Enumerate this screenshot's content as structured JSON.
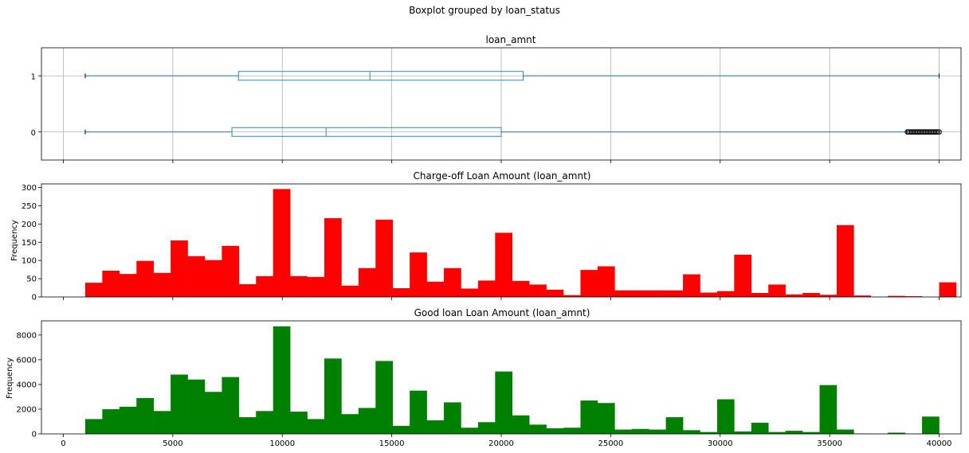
{
  "suptitle": "Boxplot grouped by loan_status",
  "chart_data": [
    {
      "type": "box",
      "title": "loan_amnt",
      "xlim": [
        -1000,
        41000
      ],
      "ylim": [
        0.5,
        2.5
      ],
      "grid": true,
      "color": "#1f77b4",
      "categories": [
        "0",
        "1"
      ],
      "boxes": [
        {
          "category": "0",
          "whisker_low": 1000,
          "q1": 7700,
          "median": 12000,
          "q3": 20000,
          "whisker_high": 38500,
          "outlier_range": [
            38550,
            40000
          ]
        },
        {
          "category": "1",
          "whisker_low": 1000,
          "q1": 8000,
          "median": 14000,
          "q3": 21000,
          "whisker_high": 40000,
          "outlier_range": []
        }
      ],
      "xticks": [
        0,
        5000,
        10000,
        15000,
        20000,
        25000,
        30000,
        35000,
        40000
      ]
    },
    {
      "type": "bar",
      "title": "Charge-off Loan Amount (loan_amnt)",
      "ylabel": "Frequency",
      "color": "#ff0000",
      "bin_start": 1000,
      "bin_width": 780,
      "xlim": [
        -1000,
        41000
      ],
      "ylim": [
        0,
        310
      ],
      "yticks": [
        0,
        50,
        100,
        150,
        200,
        250,
        300
      ],
      "values": [
        39,
        72,
        63,
        99,
        66,
        155,
        112,
        101,
        140,
        35,
        57,
        296,
        57,
        55,
        216,
        31,
        79,
        212,
        24,
        122,
        42,
        79,
        23,
        45,
        176,
        44,
        34,
        20,
        5,
        74,
        84,
        18,
        18,
        18,
        18,
        62,
        12,
        16,
        116,
        11,
        34,
        7,
        11,
        6,
        197,
        4,
        0,
        3,
        2,
        0,
        40
      ]
    },
    {
      "type": "bar",
      "title": "Good loan Loan Amount (loan_amnt)",
      "ylabel": "Frequency",
      "xlabel": "",
      "color": "#008000",
      "bin_start": 1000,
      "bin_width": 780,
      "xlim": [
        -1000,
        41000
      ],
      "ylim": [
        0,
        9150
      ],
      "yticks": [
        0,
        2000,
        4000,
        6000,
        8000
      ],
      "xticks": [
        0,
        5000,
        10000,
        15000,
        20000,
        25000,
        30000,
        35000,
        40000
      ],
      "values": [
        1200,
        2000,
        2200,
        2900,
        1850,
        4800,
        4400,
        3400,
        4600,
        1350,
        1850,
        8700,
        1800,
        1200,
        6100,
        1600,
        2100,
        5900,
        650,
        3500,
        1100,
        2550,
        500,
        950,
        5050,
        1500,
        750,
        450,
        500,
        2700,
        2500,
        350,
        400,
        350,
        1350,
        300,
        150,
        2800,
        200,
        900,
        150,
        250,
        150,
        3950,
        350,
        30,
        20,
        100,
        20,
        1400
      ]
    }
  ]
}
